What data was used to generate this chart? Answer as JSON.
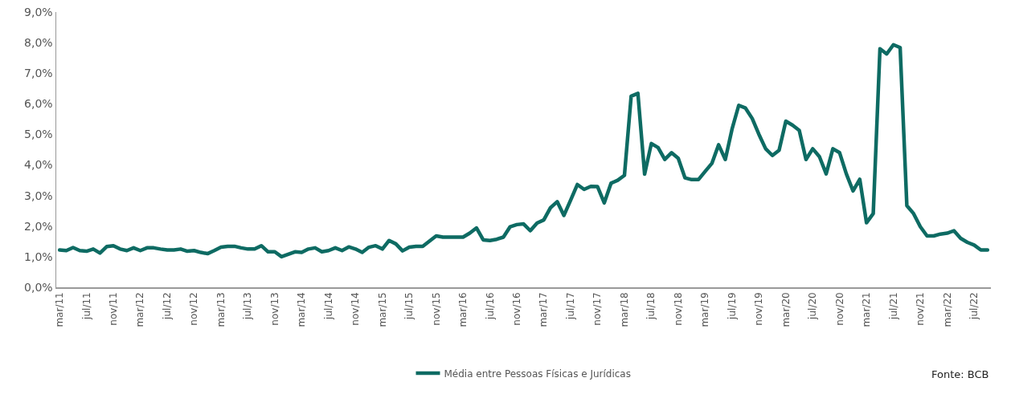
{
  "chart_data": {
    "type": "line",
    "categories": [
      "mar/11",
      null,
      null,
      null,
      "jul/11",
      null,
      null,
      null,
      "nov/11",
      null,
      null,
      null,
      "mar/12",
      null,
      null,
      null,
      "jul/12",
      null,
      null,
      null,
      "nov/12",
      null,
      null,
      null,
      "mar/13",
      null,
      null,
      null,
      "jul/13",
      null,
      null,
      null,
      "nov/13",
      null,
      null,
      null,
      "mar/14",
      null,
      null,
      null,
      "jul/14",
      null,
      null,
      null,
      "nov/14",
      null,
      null,
      null,
      "mar/15",
      null,
      null,
      null,
      "jul/15",
      null,
      null,
      null,
      "nov/15",
      null,
      null,
      null,
      "mar/16",
      null,
      null,
      null,
      "jul/16",
      null,
      null,
      null,
      "nov/16",
      null,
      null,
      null,
      "mar/17",
      null,
      null,
      null,
      "jul/17",
      null,
      null,
      null,
      "nov/17",
      null,
      null,
      null,
      "mar/18",
      null,
      null,
      null,
      "jul/18",
      null,
      null,
      null,
      "nov/18",
      null,
      null,
      null,
      "mar/19",
      null,
      null,
      null,
      "jul/19",
      null,
      null,
      null,
      "nov/19",
      null,
      null,
      null,
      "mar/20",
      null,
      null,
      null,
      "jul/20",
      null,
      null,
      null,
      "nov/20",
      null,
      null,
      null,
      "mar/21",
      null,
      null,
      null,
      "jul/21",
      null,
      null,
      null,
      "nov/21",
      null,
      null,
      null,
      "mar/22",
      null,
      null,
      null,
      "jul/22",
      null,
      null
    ],
    "series": [
      {
        "name": "Média entre Pessoas Físicas e Jurídicas",
        "color": "#0e6b63",
        "values": [
          1.22,
          1.2,
          1.3,
          1.2,
          1.18,
          1.25,
          1.12,
          1.33,
          1.36,
          1.25,
          1.2,
          1.29,
          1.2,
          1.29,
          1.29,
          1.25,
          1.22,
          1.22,
          1.25,
          1.18,
          1.2,
          1.14,
          1.1,
          1.2,
          1.31,
          1.34,
          1.34,
          1.29,
          1.25,
          1.25,
          1.36,
          1.16,
          1.16,
          1.0,
          1.08,
          1.16,
          1.14,
          1.25,
          1.29,
          1.16,
          1.2,
          1.29,
          1.2,
          1.32,
          1.25,
          1.14,
          1.31,
          1.36,
          1.25,
          1.53,
          1.42,
          1.19,
          1.31,
          1.34,
          1.34,
          1.51,
          1.68,
          1.64,
          1.64,
          1.64,
          1.64,
          1.77,
          1.94,
          1.55,
          1.53,
          1.57,
          1.64,
          1.98,
          2.05,
          2.07,
          1.85,
          2.1,
          2.2,
          2.6,
          2.8,
          2.35,
          2.85,
          3.36,
          3.2,
          3.3,
          3.29,
          2.76,
          3.4,
          3.5,
          3.66,
          6.25,
          6.34,
          3.7,
          4.7,
          4.57,
          4.18,
          4.4,
          4.22,
          3.58,
          3.52,
          3.52,
          3.79,
          4.05,
          4.66,
          4.18,
          5.17,
          5.95,
          5.86,
          5.52,
          5.0,
          4.53,
          4.31,
          4.48,
          5.43,
          5.3,
          5.13,
          4.18,
          4.53,
          4.27,
          3.71,
          4.53,
          4.4,
          3.71,
          3.15,
          3.53,
          2.11,
          2.41,
          7.8,
          7.63,
          7.93,
          7.84,
          2.67,
          2.41,
          1.98,
          1.68,
          1.68,
          1.74,
          1.77,
          1.85,
          1.6,
          1.47,
          1.38,
          1.22,
          1.22
        ]
      }
    ],
    "ylim": [
      0,
      9
    ],
    "yticks": [
      {
        "value": 0,
        "label": "0,0%"
      },
      {
        "value": 1,
        "label": "1,0%"
      },
      {
        "value": 2,
        "label": "2,0%"
      },
      {
        "value": 3,
        "label": "3,0%"
      },
      {
        "value": 4,
        "label": "4,0%"
      },
      {
        "value": 5,
        "label": "5,0%"
      },
      {
        "value": 6,
        "label": "6,0%"
      },
      {
        "value": 7,
        "label": "7,0%"
      },
      {
        "value": 8,
        "label": "8,0%"
      },
      {
        "value": 9,
        "label": "9,0%"
      }
    ],
    "grid": false,
    "legend": "bottom",
    "marker": "none",
    "line_style": "solid",
    "annotations": [
      "Fonte: BCB"
    ]
  }
}
